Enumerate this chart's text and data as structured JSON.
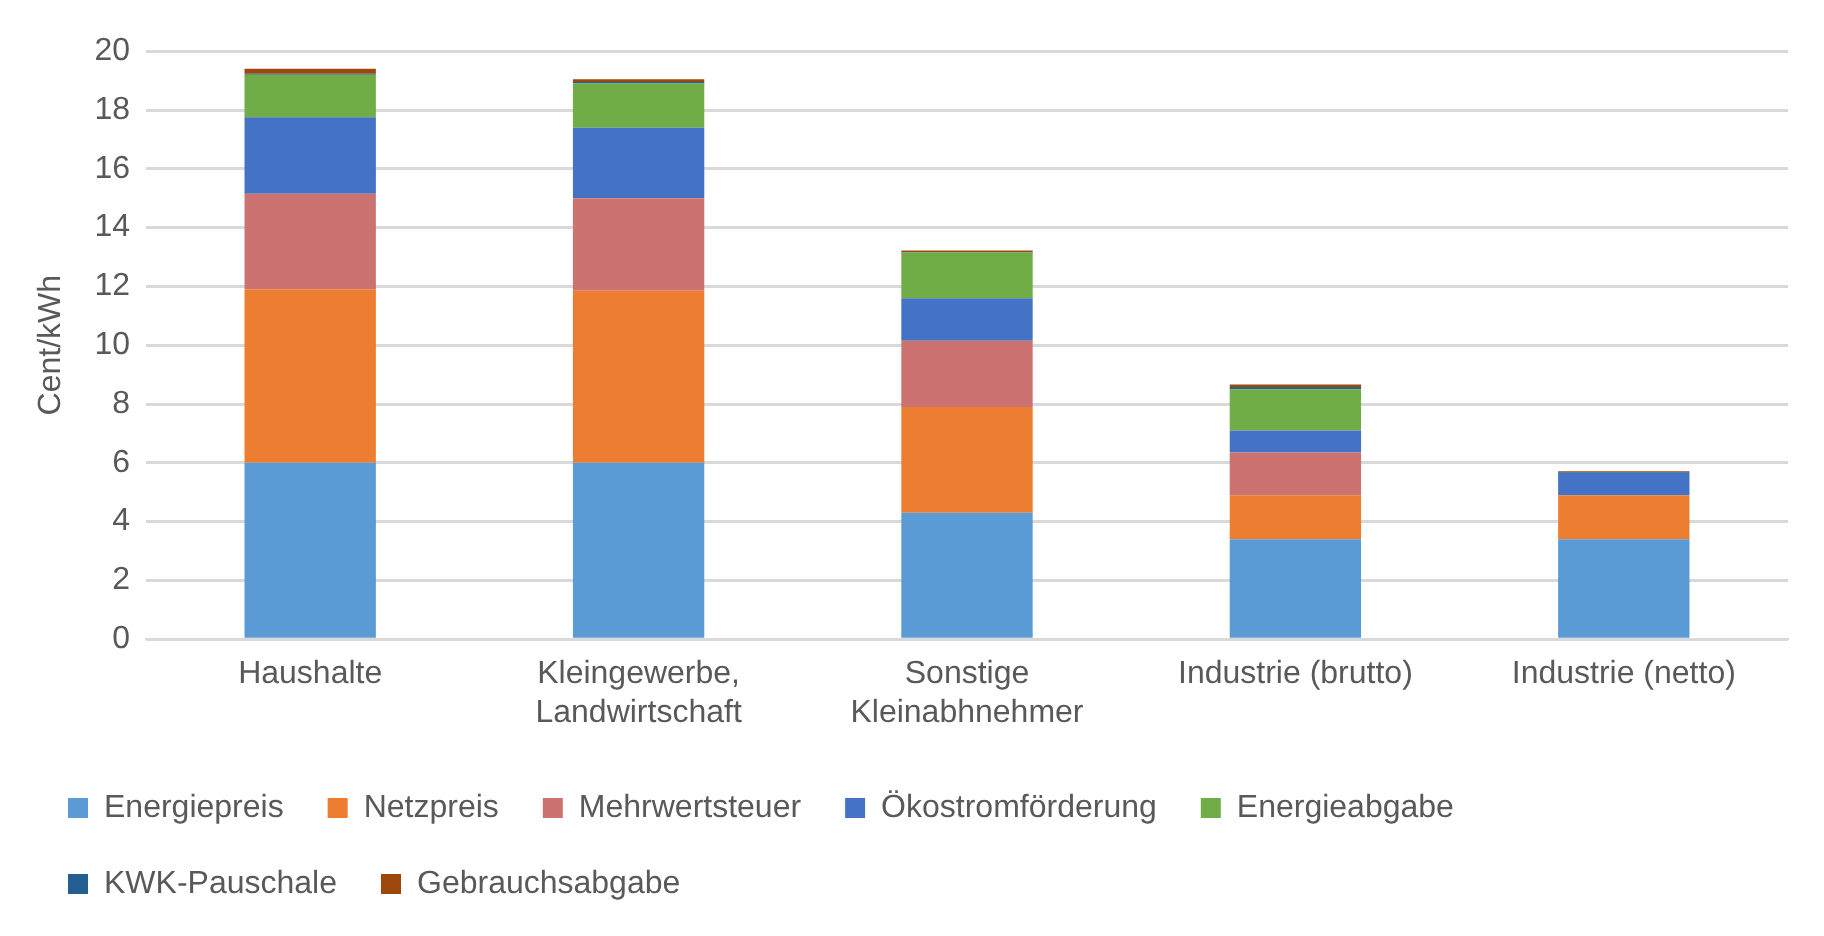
{
  "chart_data": {
    "type": "bar",
    "stacked": true,
    "ylabel": "Cent/kWh",
    "categories": [
      "Haushalte",
      "Kleingewerbe,\nLandwirtschaft",
      "Sonstige\nKleinabhnehmer",
      "Industrie (brutto)",
      "Industrie (netto)"
    ],
    "series": [
      {
        "name": "Energiepreis",
        "color": "#5b9bd5",
        "values": [
          6.0,
          6.0,
          4.3,
          3.4,
          3.4
        ]
      },
      {
        "name": "Netzpreis",
        "color": "#ed7d31",
        "values": [
          5.9,
          5.85,
          3.6,
          1.5,
          1.5
        ]
      },
      {
        "name": "Mehrwertsteuer",
        "color": "#cc7371",
        "values": [
          3.25,
          3.15,
          2.25,
          1.45,
          0
        ]
      },
      {
        "name": "Ökostromförderung",
        "color": "#4472c4",
        "values": [
          2.6,
          2.4,
          1.45,
          0.75,
          0.75
        ]
      },
      {
        "name": "Energieabgabe",
        "color": "#70ad47",
        "values": [
          1.45,
          1.5,
          1.55,
          1.4,
          0
        ]
      },
      {
        "name": "KWK-Pauschale",
        "color": "#255e91",
        "values": [
          0.03,
          0.05,
          0.02,
          0.08,
          0.03
        ]
      },
      {
        "name": "Gebrauchsabgabe",
        "color": "#9e480e",
        "values": [
          0.17,
          0.1,
          0.05,
          0.08,
          0.03
        ]
      }
    ],
    "ylim": [
      0,
      20
    ],
    "yticks": [
      0,
      2,
      4,
      6,
      8,
      10,
      12,
      14,
      16,
      18,
      20
    ],
    "grid": "y",
    "legend": "bottom"
  }
}
